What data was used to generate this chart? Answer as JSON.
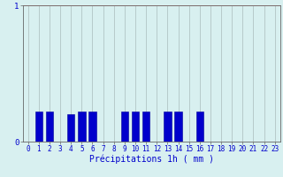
{
  "hours": [
    0,
    1,
    2,
    3,
    4,
    5,
    6,
    7,
    8,
    9,
    10,
    11,
    12,
    13,
    14,
    15,
    16,
    17,
    18,
    19,
    20,
    21,
    22,
    23
  ],
  "values": [
    0,
    0.22,
    0.22,
    0,
    0.2,
    0.22,
    0.22,
    0,
    0,
    0.22,
    0.22,
    0.22,
    0,
    0.22,
    0.22,
    0,
    0.22,
    0,
    0,
    0,
    0,
    0,
    0,
    0
  ],
  "bar_color": "#0000cc",
  "bar_edge_color": "#000099",
  "background_color": "#d8f0f0",
  "grid_color_h": "#ff9999",
  "grid_color_v": "#aabbbb",
  "xlabel": "Précipitations 1h ( mm )",
  "xlabel_color": "#0000cc",
  "tick_color": "#0000cc",
  "axis_color": "#666666",
  "ylim": [
    0,
    1.0
  ],
  "yticks": [
    0,
    1
  ],
  "xlabel_fontsize": 7,
  "tick_fontsize": 5.5
}
